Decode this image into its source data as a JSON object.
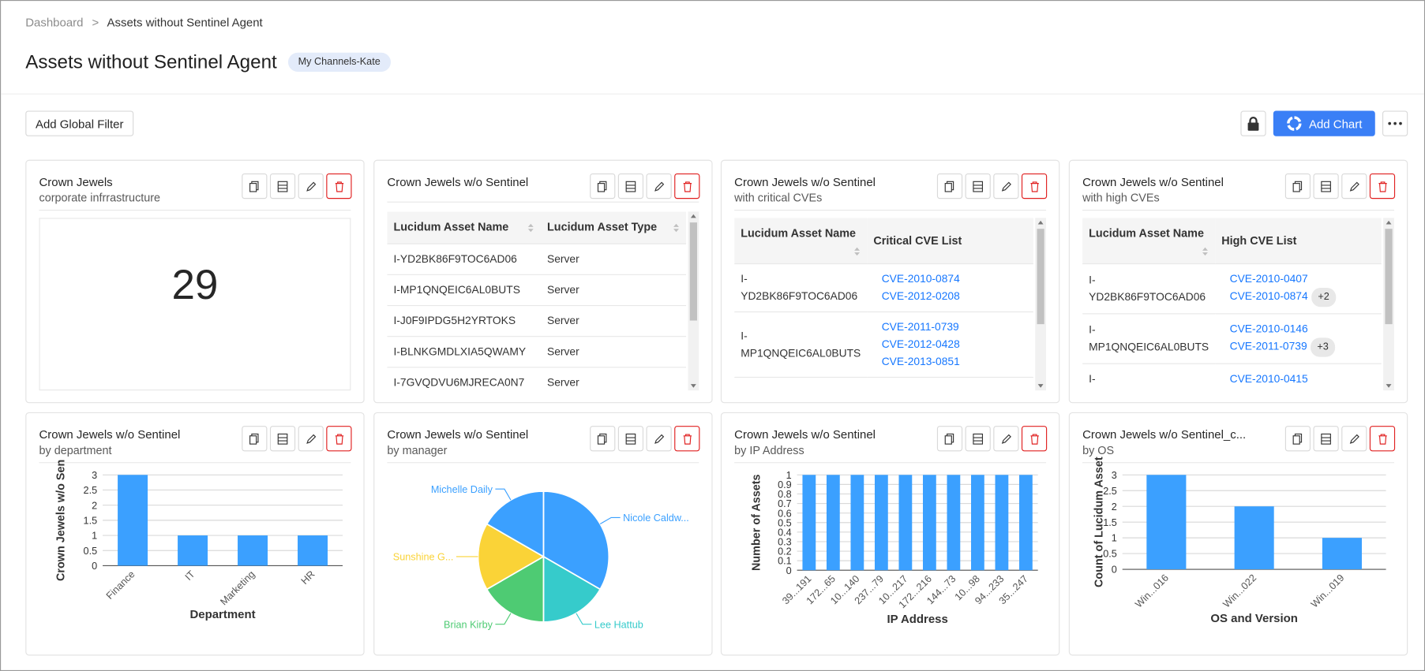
{
  "breadcrumb": [
    "Dashboard",
    "Assets without Sentinel Agent"
  ],
  "header": {
    "title": "Assets without Sentinel Agent",
    "tag": "My Channels-Kate"
  },
  "toolbar": {
    "filter_button": "Add Global Filter",
    "add_chart": "Add Chart"
  },
  "widgets": [
    {
      "title": "Crown Jewels",
      "subtitle": "corporate infrrastructure",
      "type": "number",
      "value": 29
    },
    {
      "title": "Crown Jewels w/o Sentinel",
      "type": "table",
      "columns": [
        "Lucidum Asset Name",
        "Lucidum Asset Type"
      ],
      "rows": [
        {
          "name": "I-YD2BK86F9TOC6AD06",
          "type": "Server"
        },
        {
          "name": "I-MP1QNQEIC6AL0BUTS",
          "type": "Server"
        },
        {
          "name": "I-J0F9IPDG5H2YRTOKS",
          "type": "Server"
        },
        {
          "name": "I-BLNKGMDLXIA5QWAMY",
          "type": "Server"
        },
        {
          "name": "I-7GVQDVU6MJRECA0N7",
          "type": "Server"
        }
      ]
    },
    {
      "title": "Crown Jewels w/o Sentinel",
      "subtitle": "with critical CVEs",
      "type": "table",
      "columns": [
        "Lucidum Asset Name",
        "Critical CVE List"
      ],
      "rows": [
        {
          "name": "I-YD2BK86F9TOC6AD06",
          "cves": [
            "CVE-2010-0874",
            "CVE-2012-0208"
          ]
        },
        {
          "name": "I-MP1QNQEIC6AL0BUTS",
          "cves": [
            "CVE-2011-0739",
            "CVE-2012-0428",
            "CVE-2013-0851"
          ]
        }
      ]
    },
    {
      "title": "Crown Jewels w/o Sentinel",
      "subtitle": "with high CVEs",
      "type": "table",
      "columns": [
        "Lucidum Asset Name",
        "High CVE List"
      ],
      "rows": [
        {
          "name": "I-YD2BK86F9TOC6AD06",
          "cves": [
            "CVE-2010-0407",
            "CVE-2010-0874"
          ],
          "more": "+2"
        },
        {
          "name": "I-MP1QNQEIC6AL0BUTS",
          "cves": [
            "CVE-2010-0146",
            "CVE-2011-0739"
          ],
          "more": "+3"
        },
        {
          "name": "I-",
          "cves": [
            "CVE-2010-0415"
          ]
        }
      ]
    },
    {
      "title": "Crown Jewels w/o Sentinel",
      "subtitle": "by department",
      "type": "bar",
      "categories": [
        "Finance",
        "IT",
        "Marketing",
        "HR"
      ],
      "values": [
        3,
        1,
        1,
        1
      ],
      "color": "#3ba0ff",
      "ylim": [
        0,
        3
      ],
      "yticks": [
        0,
        0.5,
        1,
        1.5,
        2,
        2.5,
        3
      ],
      "grid": true,
      "ylabel": "Crown Jewels w/o Sen",
      "xlabel": "Department"
    },
    {
      "title": "Crown Jewels w/o Sentinel",
      "subtitle": "by manager",
      "type": "pie",
      "categories": [
        "Nicole Caldw...",
        "Lee Hattub",
        "Brian Kirby",
        "Sunshine G...",
        "Michelle Daily"
      ],
      "values": [
        2,
        1,
        1,
        1,
        1
      ],
      "colors": [
        "#3ba0ff",
        "#36cbcb",
        "#4ecb73",
        "#fad337",
        "#3ba0ff"
      ]
    },
    {
      "title": "Crown Jewels w/o Sentinel",
      "subtitle": "by IP Address",
      "type": "bar",
      "categories": [
        "39...191",
        "172...65",
        "10...140",
        "237...79",
        "10...217",
        "172...216",
        "144...73",
        "10...98",
        "94...233",
        "35...247"
      ],
      "values": [
        1,
        1,
        1,
        1,
        1,
        1,
        1,
        1,
        1,
        1
      ],
      "color": "#3ba0ff",
      "ylim": [
        0,
        1
      ],
      "yticks": [
        0,
        0.1,
        0.2,
        0.3,
        0.4,
        0.5,
        0.6,
        0.7,
        0.8,
        0.9,
        1
      ],
      "grid": true,
      "ylabel": "Number of Assets",
      "xlabel": "IP Address"
    },
    {
      "title": "Crown Jewels w/o Sentinel_c...",
      "subtitle": "by OS",
      "type": "bar",
      "categories": [
        "Win...016",
        "Win...022",
        "Win...019"
      ],
      "values": [
        3,
        2,
        1
      ],
      "color": "#3ba0ff",
      "ylim": [
        0,
        3
      ],
      "yticks": [
        0,
        0.5,
        1,
        1.5,
        2,
        2.5,
        3
      ],
      "grid": true,
      "ylabel": "Count of Lucidum Asset",
      "xlabel": "OS and Version"
    }
  ]
}
